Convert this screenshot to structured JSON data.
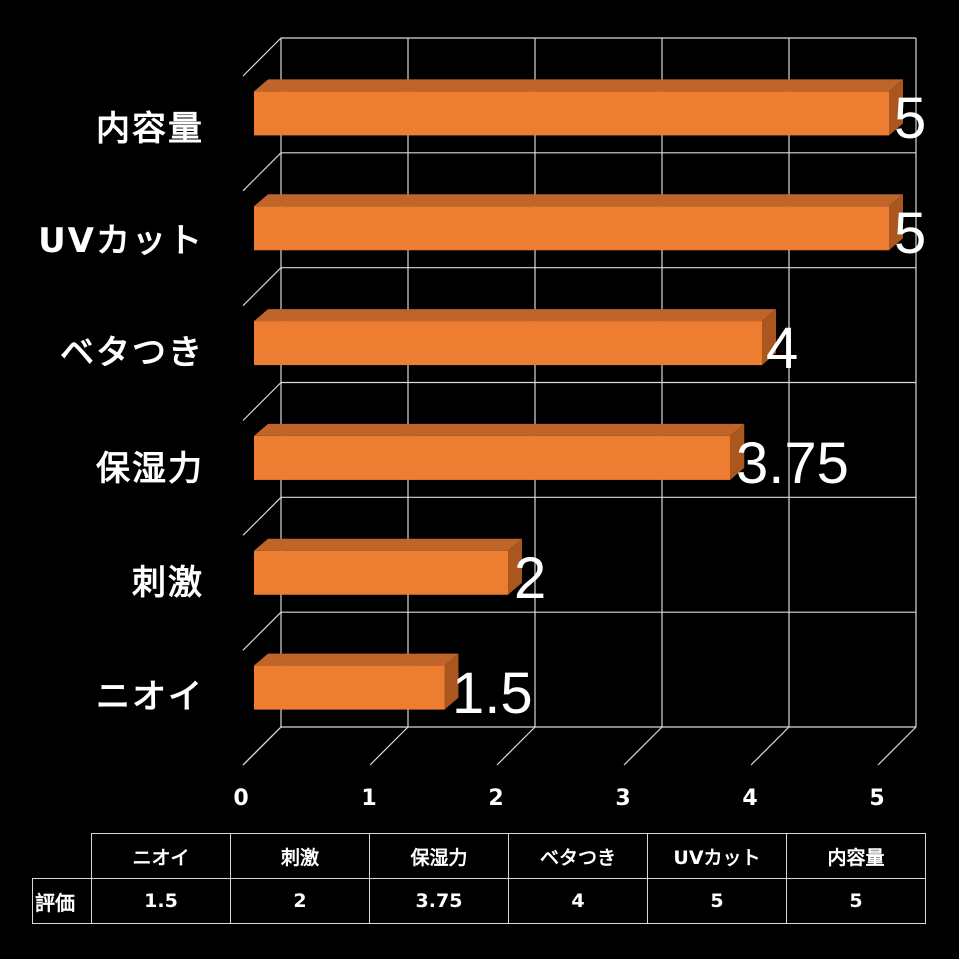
{
  "chart_data": {
    "type": "bar",
    "orientation": "horizontal",
    "style": "3d-clustered-bar",
    "title": "",
    "xlabel": "",
    "ylabel": "",
    "categories": [
      "ニオイ",
      "刺激",
      "保湿力",
      "ベタつき",
      "UVカット",
      "内容量"
    ],
    "series": [
      {
        "name": "評価",
        "values": [
          1.5,
          2,
          3.75,
          4,
          5,
          5
        ]
      }
    ],
    "value_labels": [
      "1.5",
      "2",
      "3.75",
      "4",
      "5",
      "5"
    ],
    "xlim": [
      0,
      5
    ],
    "x_ticks": [
      "0",
      "1",
      "2",
      "3",
      "4",
      "5"
    ],
    "grid": true,
    "legend": "none",
    "data_table": true
  },
  "colors": {
    "background": "#000000",
    "bar_front": "#ED7D31",
    "bar_top": "#C0652A",
    "bar_side": "#A9561F",
    "grid": "#D9D9D9",
    "text": "#FFFFFF"
  },
  "axis": {
    "ticks": [
      "0",
      "1",
      "2",
      "3",
      "4",
      "5"
    ]
  },
  "bars_top_to_bottom": [
    {
      "label": "内容量",
      "value_label": "5"
    },
    {
      "label": "UVカット",
      "value_label": "5"
    },
    {
      "label": "ベタつき",
      "value_label": "4"
    },
    {
      "label": "保湿力",
      "value_label": "3.75"
    },
    {
      "label": "刺激",
      "value_label": "2"
    },
    {
      "label": "ニオイ",
      "value_label": "1.5"
    }
  ],
  "table": {
    "headers": [
      "ニオイ",
      "刺激",
      "保湿力",
      "ベタつき",
      "UVカット",
      "内容量"
    ],
    "row_label": "評価",
    "values": [
      "1.5",
      "2",
      "3.75",
      "4",
      "5",
      "5"
    ]
  }
}
